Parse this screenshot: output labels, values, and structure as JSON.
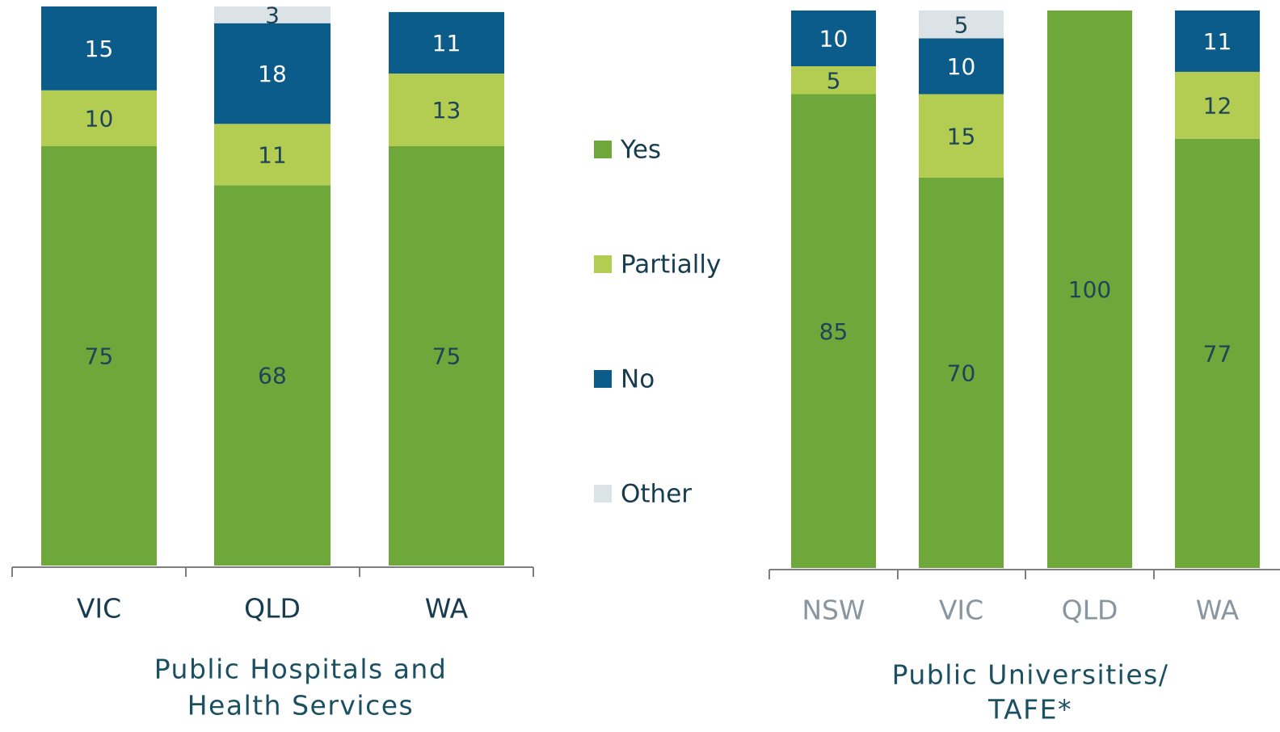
{
  "chart_data": [
    {
      "type": "stacked-bar",
      "title": [
        "Public Hospitals and",
        "Health Services"
      ],
      "categories": [
        "VIC",
        "QLD",
        "WA"
      ],
      "ylim": [
        0,
        100
      ],
      "series": [
        {
          "name": "Yes",
          "color": "#6fa83a",
          "values": [
            75,
            68,
            75
          ]
        },
        {
          "name": "Partially",
          "color": "#b3cc52",
          "values": [
            10,
            11,
            13
          ]
        },
        {
          "name": "No",
          "color": "#0b5b8b",
          "values": [
            15,
            18,
            11
          ]
        },
        {
          "name": "Other",
          "color": "#dbe3e7",
          "values": [
            null,
            3,
            null
          ]
        }
      ]
    },
    {
      "type": "stacked-bar",
      "title": [
        "Public Universities/",
        "TAFE*"
      ],
      "categories": [
        "NSW",
        "VIC",
        "QLD",
        "WA"
      ],
      "ylim": [
        0,
        100
      ],
      "series": [
        {
          "color": "#6fa83a",
          "values": [
            85,
            70,
            100,
            77
          ]
        },
        {
          "color": "#b3cc52",
          "values": [
            5,
            15,
            null,
            12
          ]
        },
        {
          "color": "#0b5b8b",
          "values": [
            10,
            10,
            null,
            11
          ]
        },
        {
          "color": "#dbe3e7",
          "values": [
            null,
            5,
            null,
            null
          ]
        }
      ]
    }
  ]
}
